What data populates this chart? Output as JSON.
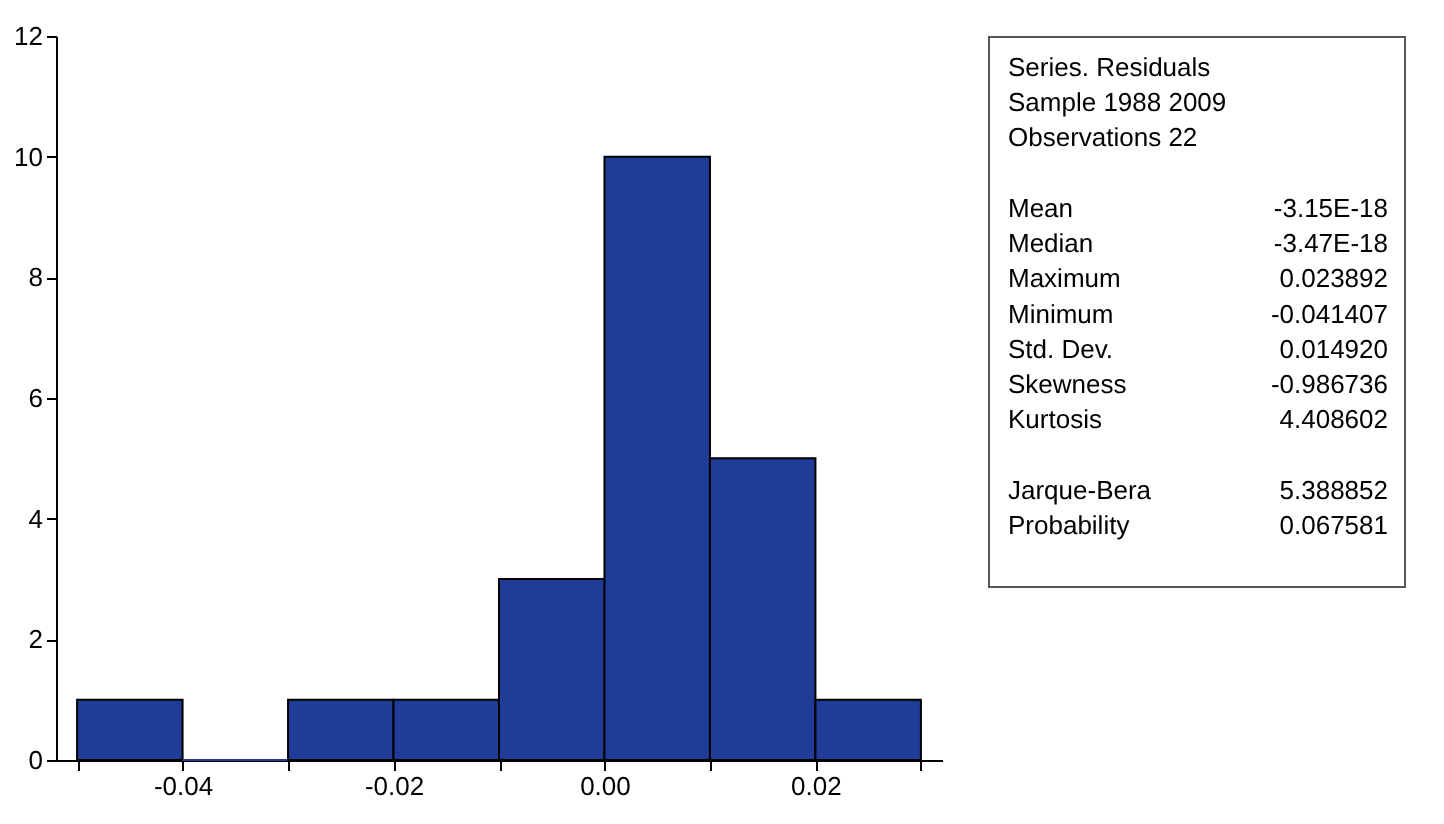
{
  "chart_data": [
    {
      "type": "histogram",
      "bins": [
        -0.05,
        -0.04,
        -0.03,
        -0.02,
        -0.01,
        0.0,
        0.01,
        0.02,
        0.03
      ],
      "values": [
        1,
        0,
        1,
        1,
        3,
        10,
        5,
        1
      ],
      "color": "#1f3c99",
      "xlim": [
        -0.052,
        0.032
      ],
      "xticks": [
        {
          "value": -0.05,
          "label": null
        },
        -0.04,
        {
          "value": -0.03,
          "label": null
        },
        -0.02,
        {
          "value": -0.01,
          "label": null
        },
        {
          "value": 0,
          "label": "0.00"
        },
        {
          "value": 0.01,
          "label": null
        },
        0.02,
        {
          "value": 0.03,
          "label": null
        }
      ],
      "ylim": [
        0,
        12
      ],
      "yticks": [
        0,
        2,
        4,
        6,
        8,
        10,
        12
      ],
      "grid": false
    },
    {
      "type": "other",
      "annotations": [
        "Series. Residuals",
        "Sample 1988 2009",
        "Observations 22"
      ],
      "categories": [
        "Mean",
        "Median",
        "Maximum",
        "Minimum",
        "Std. Dev.",
        "Skewness",
        "Kurtosis",
        "Jarque-Bera",
        "Probability"
      ],
      "values": [
        -3.15e-18,
        -3.47e-18,
        0.023892,
        -0.041407,
        0.01492,
        -0.986736,
        4.408602,
        5.388852,
        0.067581
      ],
      "value_labels": [
        "-3.15E-18",
        "-3.47E-18",
        "0.023892",
        "-0.041407",
        "0.014920",
        "-0.986736",
        "4.408602",
        "5.388852",
        "0.067581"
      ]
    }
  ]
}
